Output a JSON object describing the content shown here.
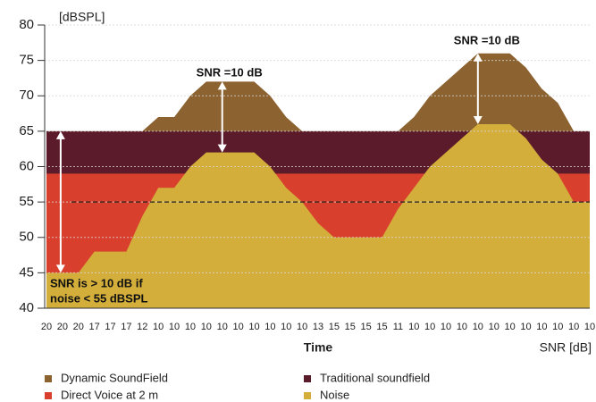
{
  "chart_data": {
    "type": "area",
    "ylabel": "[dBSPL]",
    "xlabel": "Time",
    "x_row_label": "SNR [dB]",
    "categories": [
      "20",
      "20",
      "20",
      "17",
      "17",
      "17",
      "12",
      "10",
      "10",
      "10",
      "10",
      "10",
      "10",
      "10",
      "10",
      "10",
      "10",
      "13",
      "15",
      "15",
      "15",
      "15",
      "11",
      "10",
      "10",
      "10",
      "10",
      "10",
      "10",
      "10",
      "10",
      "10",
      "10",
      "10",
      "10"
    ],
    "series": [
      {
        "name": "Dynamic SoundField",
        "color": "#8c6230",
        "values": [
          65,
          65,
          65,
          65,
          65,
          65,
          65,
          67,
          67,
          70,
          72,
          72,
          72,
          72,
          70,
          67,
          65,
          65,
          65,
          65,
          65,
          65,
          65,
          67,
          70,
          72,
          74,
          76,
          76,
          76,
          74,
          71,
          69,
          65,
          65
        ]
      },
      {
        "name": "Traditional soundfield",
        "color": "#5c1b2b",
        "values": [
          65,
          65,
          65,
          65,
          65,
          65,
          65,
          65,
          65,
          65,
          65,
          65,
          65,
          65,
          65,
          65,
          65,
          65,
          65,
          65,
          65,
          65,
          65,
          65,
          65,
          65,
          65,
          65,
          65,
          65,
          65,
          65,
          65,
          65,
          65
        ]
      },
      {
        "name": "Direct Voice at 2 m",
        "color": "#d8402d",
        "values": [
          59,
          59,
          59,
          59,
          59,
          59,
          59,
          59,
          59,
          59,
          59,
          59,
          59,
          59,
          59,
          59,
          59,
          59,
          59,
          59,
          59,
          59,
          59,
          59,
          59,
          59,
          59,
          59,
          59,
          59,
          59,
          59,
          59,
          59,
          59
        ]
      },
      {
        "name": "Noise",
        "color": "#d3ae3a",
        "values": [
          45,
          45,
          45,
          48,
          48,
          48,
          53,
          57,
          57,
          60,
          62,
          62,
          62,
          62,
          60,
          57,
          55,
          52,
          50,
          50,
          50,
          50,
          54,
          57,
          60,
          62,
          64,
          66,
          66,
          66,
          64,
          61,
          59,
          55,
          55
        ]
      }
    ],
    "reference_line": 55,
    "annotations": [
      "SNR =10 dB",
      "SNR =10 dB",
      "SNR is > 10 dB if",
      "noise < 55 dBSPL"
    ],
    "ylim": [
      40,
      80
    ],
    "yticks": [
      40,
      45,
      50,
      55,
      60,
      65,
      70,
      75,
      80
    ],
    "grid": true
  }
}
